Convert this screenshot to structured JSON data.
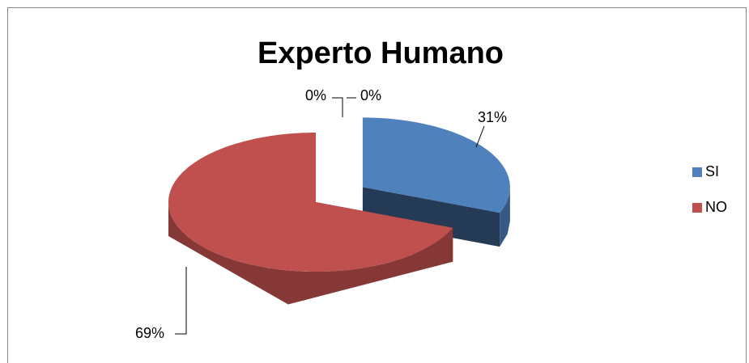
{
  "chart_data": {
    "type": "pie",
    "title": "Experto Humano",
    "categories": [
      "SI",
      "NO",
      null,
      null
    ],
    "values": [
      31,
      69,
      0,
      0
    ],
    "value_labels": [
      "31%",
      "69%",
      "0%",
      "0%"
    ],
    "colors": [
      "#4f81bd",
      "#c0504d",
      "#9bbb59",
      "#8064a2"
    ],
    "legend": "right"
  }
}
